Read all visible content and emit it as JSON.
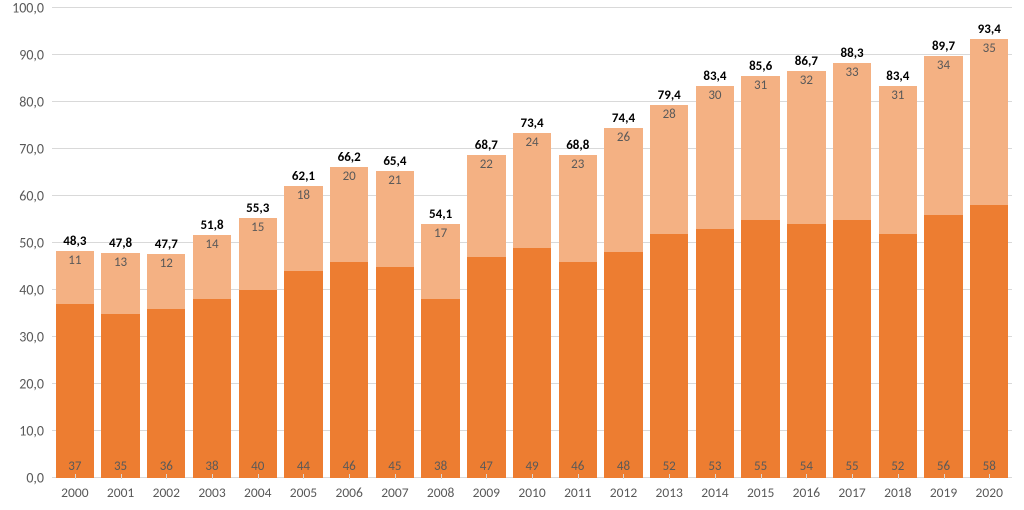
{
  "chart": {
    "type": "stacked-bar",
    "background_color": "#ffffff",
    "grid_color": "#d9d9d9",
    "axis_label_color": "#595959",
    "total_label_color": "#000000",
    "segment_label_color": "#595959",
    "label_fontsize": 13,
    "total_fontsize": 13,
    "total_fontweight": "700",
    "ylim": [
      0,
      100
    ],
    "ytick_step": 10,
    "y_tick_labels": [
      "0,0",
      "10,0",
      "20,0",
      "30,0",
      "40,0",
      "50,0",
      "60,0",
      "70,0",
      "80,0",
      "90,0",
      "100,0"
    ],
    "bar_width_ratio": 0.84,
    "series_colors": {
      "lower": "#ed7d31",
      "upper": "#f4b183"
    },
    "categories": [
      "2000",
      "2001",
      "2002",
      "2003",
      "2004",
      "2005",
      "2006",
      "2007",
      "2008",
      "2009",
      "2010",
      "2011",
      "2012",
      "2013",
      "2014",
      "2015",
      "2016",
      "2017",
      "2018",
      "2019",
      "2020"
    ],
    "data": [
      {
        "year": "2000",
        "lower": 37,
        "upper": 11,
        "total": 48.3,
        "total_label": "48,3",
        "lower_label": "37",
        "upper_label": "11"
      },
      {
        "year": "2001",
        "lower": 35,
        "upper": 13,
        "total": 47.8,
        "total_label": "47,8",
        "lower_label": "35",
        "upper_label": "13"
      },
      {
        "year": "2002",
        "lower": 36,
        "upper": 12,
        "total": 47.7,
        "total_label": "47,7",
        "lower_label": "36",
        "upper_label": "12"
      },
      {
        "year": "2003",
        "lower": 38,
        "upper": 14,
        "total": 51.8,
        "total_label": "51,8",
        "lower_label": "38",
        "upper_label": "14"
      },
      {
        "year": "2004",
        "lower": 40,
        "upper": 15,
        "total": 55.3,
        "total_label": "55,3",
        "lower_label": "40",
        "upper_label": "15"
      },
      {
        "year": "2005",
        "lower": 44,
        "upper": 18,
        "total": 62.1,
        "total_label": "62,1",
        "lower_label": "44",
        "upper_label": "18"
      },
      {
        "year": "2006",
        "lower": 46,
        "upper": 20,
        "total": 66.2,
        "total_label": "66,2",
        "lower_label": "46",
        "upper_label": "20"
      },
      {
        "year": "2007",
        "lower": 45,
        "upper": 21,
        "total": 65.4,
        "total_label": "65,4",
        "lower_label": "45",
        "upper_label": "21"
      },
      {
        "year": "2008",
        "lower": 38,
        "upper": 17,
        "total": 54.1,
        "total_label": "54,1",
        "lower_label": "38",
        "upper_label": "17"
      },
      {
        "year": "2009",
        "lower": 47,
        "upper": 22,
        "total": 68.7,
        "total_label": "68,7",
        "lower_label": "47",
        "upper_label": "22"
      },
      {
        "year": "2010",
        "lower": 49,
        "upper": 24,
        "total": 73.4,
        "total_label": "73,4",
        "lower_label": "49",
        "upper_label": "24"
      },
      {
        "year": "2011",
        "lower": 46,
        "upper": 23,
        "total": 68.8,
        "total_label": "68,8",
        "lower_label": "46",
        "upper_label": "23"
      },
      {
        "year": "2012",
        "lower": 48,
        "upper": 26,
        "total": 74.4,
        "total_label": "74,4",
        "lower_label": "48",
        "upper_label": "26"
      },
      {
        "year": "2013",
        "lower": 52,
        "upper": 28,
        "total": 79.4,
        "total_label": "79,4",
        "lower_label": "52",
        "upper_label": "28"
      },
      {
        "year": "2014",
        "lower": 53,
        "upper": 30,
        "total": 83.4,
        "total_label": "83,4",
        "lower_label": "53",
        "upper_label": "30"
      },
      {
        "year": "2015",
        "lower": 55,
        "upper": 31,
        "total": 85.6,
        "total_label": "85,6",
        "lower_label": "55",
        "upper_label": "31"
      },
      {
        "year": "2016",
        "lower": 54,
        "upper": 32,
        "total": 86.7,
        "total_label": "86,7",
        "lower_label": "54",
        "upper_label": "32"
      },
      {
        "year": "2017",
        "lower": 55,
        "upper": 33,
        "total": 88.3,
        "total_label": "88,3",
        "lower_label": "55",
        "upper_label": "33"
      },
      {
        "year": "2018",
        "lower": 52,
        "upper": 31,
        "total": 83.4,
        "total_label": "83,4",
        "lower_label": "52",
        "upper_label": "31"
      },
      {
        "year": "2019",
        "lower": 56,
        "upper": 34,
        "total": 89.7,
        "total_label": "89,7",
        "lower_label": "56",
        "upper_label": "34"
      },
      {
        "year": "2020",
        "lower": 58,
        "upper": 35,
        "total": 93.4,
        "total_label": "93,4",
        "lower_label": "58",
        "upper_label": "35"
      }
    ]
  }
}
